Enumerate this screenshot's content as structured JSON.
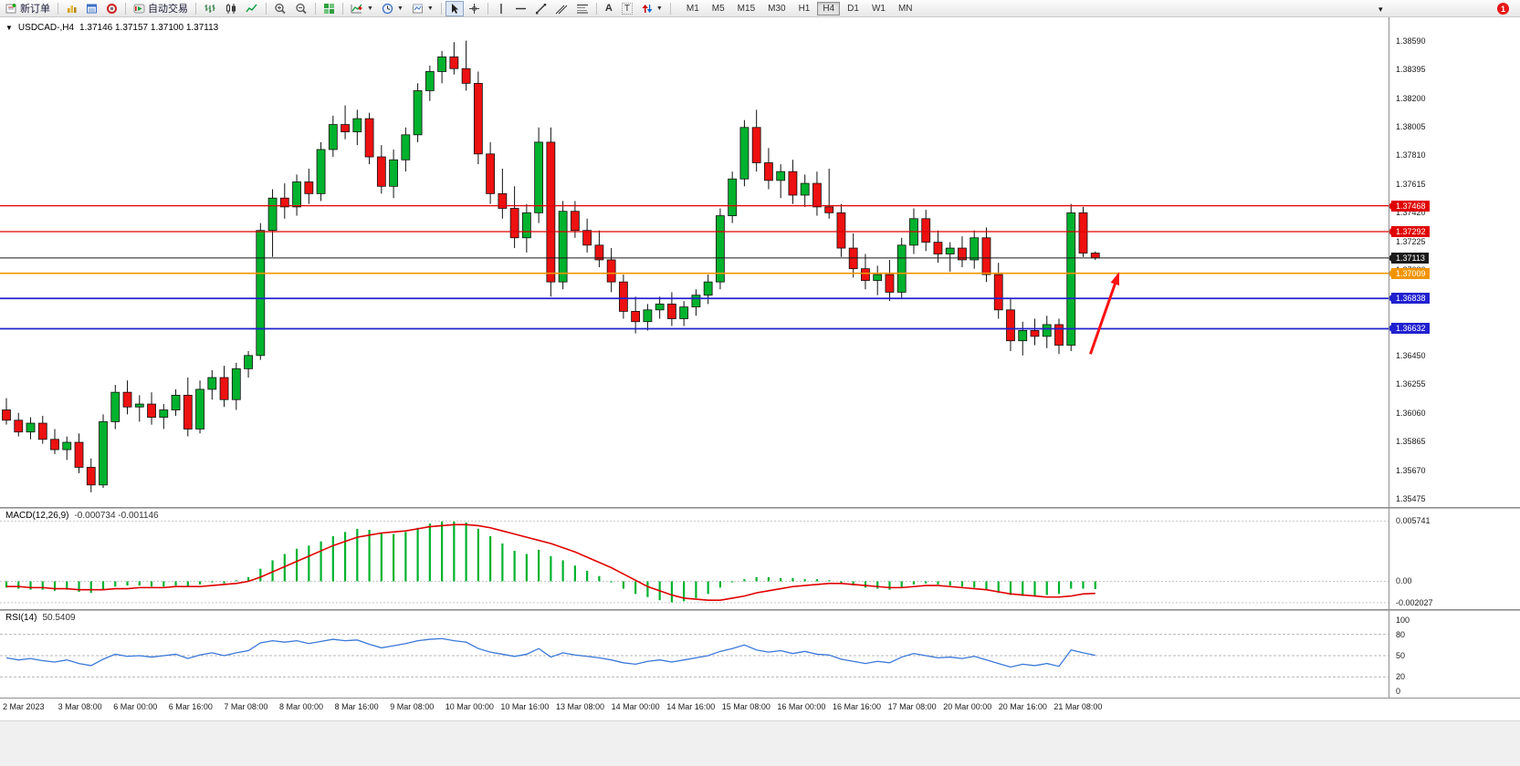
{
  "toolbar": {
    "new_order_label": "新订单",
    "algo_trading_label": "自动交易",
    "timeframes": [
      "M1",
      "M5",
      "M15",
      "M30",
      "H1",
      "H4",
      "D1",
      "W1",
      "MN"
    ],
    "active_timeframe": "H4",
    "notification_count": "1",
    "overflow_glyph": "▾"
  },
  "icons": {
    "new-order": "ticket-plus",
    "depth-of-market": "gold-bars",
    "data-window": "blue-list",
    "toolbox": "red-round",
    "algo-trading": "green-play",
    "bars-chart": "ohlc-bars",
    "candles-chart": "candles",
    "line-chart": "zigzag",
    "zoom-in": "magnifier-plus",
    "zoom-out": "magnifier-minus",
    "tile-windows": "green-grid",
    "indicators": "chart-plus",
    "periods": "clock",
    "templates": "image-page",
    "cursor": "pointer-arrow",
    "crosshair": "cross",
    "vertical-line": "|",
    "horizontal-line": "—",
    "trendline": "/",
    "channel": "parallel-lines",
    "fibonacci": "stacked-lines",
    "text": "A",
    "label": "T",
    "arrows": "up-down-arrows",
    "collapse": "▼"
  },
  "chart": {
    "type": "candlestick",
    "title": "USDCAD-,H4",
    "ohlc": "1.37146 1.37157 1.37100 1.37113",
    "colors": {
      "up": "#00b22d",
      "down": "#ee1111",
      "wick": "#111111",
      "arrow": "#ff1111"
    },
    "price_axis": {
      "min": 1.3542,
      "max": 1.3873,
      "ticks": [
        "1.38590",
        "1.38395",
        "1.38200",
        "1.38005",
        "1.37810",
        "1.37615",
        "1.37420",
        "1.37225",
        "1.37030",
        "1.36835",
        "1.36640",
        "1.36450",
        "1.36255",
        "1.36060",
        "1.35865",
        "1.35670",
        "1.35475"
      ]
    },
    "levels": [
      {
        "label": "1.37468",
        "price": 1.37468,
        "color": "#e00000",
        "width": 1.3
      },
      {
        "label": "1.37292",
        "price": 1.37292,
        "color": "#e00000",
        "width": 1.3
      },
      {
        "label": "1.37113",
        "price": 1.37113,
        "color": "#1a1a1a",
        "width": 1.0,
        "role": "current-price"
      },
      {
        "label": "1.37009",
        "price": 1.37009,
        "color": "#f29400",
        "width": 1.6
      },
      {
        "label": "1.36838",
        "price": 1.36838,
        "color": "#2121cf",
        "width": 1.8
      },
      {
        "label": "1.36632",
        "price": 1.36632,
        "color": "#2121cf",
        "width": 1.8
      }
    ],
    "arrow": {
      "from": {
        "bar": 89.6,
        "price": 1.3646
      },
      "to": {
        "bar": 91.9,
        "price": 1.37
      },
      "color": "#ff1111"
    },
    "candles": [
      [
        1.3608,
        1.3616,
        1.3598,
        1.3601
      ],
      [
        1.3601,
        1.3606,
        1.359,
        1.3593
      ],
      [
        1.3593,
        1.3603,
        1.3588,
        1.3599
      ],
      [
        1.3599,
        1.3604,
        1.3585,
        1.3588
      ],
      [
        1.3588,
        1.3595,
        1.3578,
        1.3581
      ],
      [
        1.3581,
        1.359,
        1.3574,
        1.3586
      ],
      [
        1.3586,
        1.3592,
        1.3565,
        1.3569
      ],
      [
        1.3569,
        1.3575,
        1.3552,
        1.3557
      ],
      [
        1.3557,
        1.3605,
        1.3555,
        1.36
      ],
      [
        1.36,
        1.3625,
        1.3595,
        1.362
      ],
      [
        1.362,
        1.3628,
        1.3605,
        1.361
      ],
      [
        1.361,
        1.3618,
        1.36,
        1.3612
      ],
      [
        1.3612,
        1.362,
        1.3598,
        1.3603
      ],
      [
        1.3603,
        1.3612,
        1.3595,
        1.3608
      ],
      [
        1.3608,
        1.3622,
        1.3604,
        1.3618
      ],
      [
        1.3618,
        1.363,
        1.359,
        1.3595
      ],
      [
        1.3595,
        1.3628,
        1.3592,
        1.3622
      ],
      [
        1.3622,
        1.3635,
        1.3615,
        1.363
      ],
      [
        1.363,
        1.3638,
        1.361,
        1.3615
      ],
      [
        1.3615,
        1.364,
        1.3608,
        1.3636
      ],
      [
        1.3636,
        1.3648,
        1.363,
        1.3645
      ],
      [
        1.3645,
        1.3735,
        1.3642,
        1.373
      ],
      [
        1.373,
        1.3758,
        1.3712,
        1.3752
      ],
      [
        1.3752,
        1.3762,
        1.3738,
        1.3746
      ],
      [
        1.3746,
        1.3768,
        1.374,
        1.3763
      ],
      [
        1.3763,
        1.3772,
        1.3748,
        1.3755
      ],
      [
        1.3755,
        1.379,
        1.375,
        1.3785
      ],
      [
        1.3785,
        1.3808,
        1.378,
        1.3802
      ],
      [
        1.3802,
        1.3815,
        1.3792,
        1.3797
      ],
      [
        1.3797,
        1.3812,
        1.3788,
        1.3806
      ],
      [
        1.3806,
        1.381,
        1.3775,
        1.378
      ],
      [
        1.378,
        1.3788,
        1.3755,
        1.376
      ],
      [
        1.376,
        1.3785,
        1.3752,
        1.3778
      ],
      [
        1.3778,
        1.38,
        1.377,
        1.3795
      ],
      [
        1.3795,
        1.383,
        1.379,
        1.3825
      ],
      [
        1.3825,
        1.3842,
        1.3818,
        1.3838
      ],
      [
        1.3838,
        1.3852,
        1.383,
        1.3848
      ],
      [
        1.3848,
        1.3858,
        1.3836,
        1.384
      ],
      [
        1.384,
        1.3859,
        1.3825,
        1.383
      ],
      [
        1.383,
        1.3838,
        1.3775,
        1.3782
      ],
      [
        1.3782,
        1.379,
        1.3748,
        1.3755
      ],
      [
        1.3755,
        1.3772,
        1.3738,
        1.3745
      ],
      [
        1.3745,
        1.376,
        1.3718,
        1.3725
      ],
      [
        1.3725,
        1.3748,
        1.3715,
        1.3742
      ],
      [
        1.3742,
        1.38,
        1.3735,
        1.379
      ],
      [
        1.379,
        1.38,
        1.3685,
        1.3695
      ],
      [
        1.3695,
        1.375,
        1.369,
        1.3743
      ],
      [
        1.3743,
        1.375,
        1.3725,
        1.373
      ],
      [
        1.373,
        1.3738,
        1.3715,
        1.372
      ],
      [
        1.372,
        1.373,
        1.3705,
        1.371
      ],
      [
        1.371,
        1.3718,
        1.3688,
        1.3695
      ],
      [
        1.3695,
        1.37,
        1.367,
        1.3675
      ],
      [
        1.3675,
        1.3685,
        1.366,
        1.3668
      ],
      [
        1.3668,
        1.368,
        1.3662,
        1.3676
      ],
      [
        1.3676,
        1.3685,
        1.367,
        1.368
      ],
      [
        1.368,
        1.3688,
        1.3665,
        1.367
      ],
      [
        1.367,
        1.3682,
        1.3665,
        1.3678
      ],
      [
        1.3678,
        1.369,
        1.3672,
        1.3686
      ],
      [
        1.3686,
        1.37,
        1.368,
        1.3695
      ],
      [
        1.3695,
        1.3745,
        1.369,
        1.374
      ],
      [
        1.374,
        1.377,
        1.3735,
        1.3765
      ],
      [
        1.3765,
        1.3805,
        1.376,
        1.38
      ],
      [
        1.38,
        1.3812,
        1.377,
        1.3776
      ],
      [
        1.3776,
        1.3786,
        1.3758,
        1.3764
      ],
      [
        1.3764,
        1.3775,
        1.3752,
        1.377
      ],
      [
        1.377,
        1.3778,
        1.3748,
        1.3754
      ],
      [
        1.3754,
        1.3768,
        1.3746,
        1.3762
      ],
      [
        1.3762,
        1.377,
        1.374,
        1.3746
      ],
      [
        1.3746,
        1.3772,
        1.3738,
        1.3742
      ],
      [
        1.3742,
        1.3748,
        1.3712,
        1.3718
      ],
      [
        1.3718,
        1.3728,
        1.3698,
        1.3704
      ],
      [
        1.3704,
        1.3714,
        1.369,
        1.3696
      ],
      [
        1.3696,
        1.3706,
        1.3686,
        1.37
      ],
      [
        1.37,
        1.371,
        1.3682,
        1.3688
      ],
      [
        1.3688,
        1.3725,
        1.3684,
        1.372
      ],
      [
        1.372,
        1.3745,
        1.3714,
        1.3738
      ],
      [
        1.3738,
        1.3744,
        1.3716,
        1.3722
      ],
      [
        1.3722,
        1.373,
        1.3708,
        1.3714
      ],
      [
        1.3714,
        1.3722,
        1.3702,
        1.3718
      ],
      [
        1.3718,
        1.3726,
        1.3705,
        1.371
      ],
      [
        1.371,
        1.373,
        1.3704,
        1.3725
      ],
      [
        1.3725,
        1.3732,
        1.3695,
        1.37
      ],
      [
        1.37,
        1.3708,
        1.367,
        1.3676
      ],
      [
        1.3676,
        1.3684,
        1.3648,
        1.3655
      ],
      [
        1.3655,
        1.3668,
        1.3645,
        1.3662
      ],
      [
        1.3662,
        1.367,
        1.3652,
        1.3658
      ],
      [
        1.3658,
        1.3672,
        1.365,
        1.3666
      ],
      [
        1.3666,
        1.367,
        1.3646,
        1.3652
      ],
      [
        1.3652,
        1.3748,
        1.3648,
        1.3742
      ],
      [
        1.3742,
        1.3746,
        1.3712,
        1.37146
      ],
      [
        1.37146,
        1.37157,
        1.371,
        1.37113
      ]
    ]
  },
  "macd": {
    "title": "MACD(12,26,9)",
    "values": "-0.000734 -0.001146",
    "axis_labels": [
      "0.005741",
      "0.00",
      "-0.002027"
    ],
    "range": {
      "min": -0.00265,
      "max": 0.0069
    },
    "colors": {
      "hist": "#00b22d",
      "signal": "#e00000"
    },
    "hist": [
      -0.0006,
      -0.0007,
      -0.0008,
      -0.0008,
      -0.0009,
      -0.0008,
      -0.001,
      -0.0011,
      -0.0008,
      -0.0005,
      -0.0004,
      -0.0004,
      -0.0005,
      -0.0005,
      -0.0004,
      -0.0005,
      -0.0003,
      -0.0001,
      -0.0002,
      0.0001,
      0.0004,
      0.0012,
      0.002,
      0.0026,
      0.0031,
      0.0034,
      0.0038,
      0.0043,
      0.0047,
      0.005,
      0.0049,
      0.0046,
      0.0045,
      0.0047,
      0.0051,
      0.0055,
      0.0057,
      0.0057,
      0.0056,
      0.005,
      0.0043,
      0.0036,
      0.0029,
      0.0026,
      0.003,
      0.0024,
      0.002,
      0.0015,
      0.001,
      0.0005,
      -0.0001,
      -0.0007,
      -0.0012,
      -0.0015,
      -0.0018,
      -0.002,
      -0.0019,
      -0.0016,
      -0.0012,
      -0.0006,
      -0.0001,
      0.0002,
      0.0004,
      0.0004,
      0.0003,
      0.0003,
      0.0002,
      0.0002,
      0.0001,
      -0.0002,
      -0.0004,
      -0.0006,
      -0.0007,
      -0.0008,
      -0.0006,
      -0.0003,
      -0.0002,
      -0.0003,
      -0.0004,
      -0.0005,
      -0.0006,
      -0.0008,
      -0.0011,
      -0.0013,
      -0.0014,
      -0.0014,
      -0.0013,
      -0.0012,
      -0.0007,
      -0.0007,
      -0.000734
    ],
    "signal": [
      -0.0005,
      -0.0005,
      -0.0006,
      -0.0006,
      -0.0007,
      -0.0007,
      -0.0008,
      -0.0008,
      -0.0008,
      -0.0007,
      -0.0007,
      -0.0006,
      -0.0006,
      -0.0006,
      -0.0005,
      -0.0005,
      -0.0005,
      -0.0004,
      -0.0003,
      -0.0002,
      0.0,
      0.0004,
      0.0009,
      0.0014,
      0.0019,
      0.0024,
      0.0029,
      0.0034,
      0.0038,
      0.0042,
      0.0044,
      0.0046,
      0.0047,
      0.0048,
      0.005,
      0.0052,
      0.0053,
      0.0054,
      0.0054,
      0.0053,
      0.0051,
      0.0048,
      0.0045,
      0.0042,
      0.0039,
      0.0036,
      0.0032,
      0.0028,
      0.0023,
      0.0018,
      0.0013,
      0.0007,
      0.0001,
      -0.0005,
      -0.0009,
      -0.0013,
      -0.0016,
      -0.0017,
      -0.0018,
      -0.0018,
      -0.0016,
      -0.0014,
      -0.0011,
      -0.0009,
      -0.0007,
      -0.0005,
      -0.0004,
      -0.0003,
      -0.0002,
      -0.0002,
      -0.0003,
      -0.0004,
      -0.0005,
      -0.0006,
      -0.0006,
      -0.0005,
      -0.0004,
      -0.0004,
      -0.0005,
      -0.0006,
      -0.0007,
      -0.0008,
      -0.001,
      -0.0012,
      -0.0013,
      -0.0014,
      -0.0015,
      -0.0015,
      -0.0014,
      -0.0012,
      -0.001146
    ]
  },
  "rsi": {
    "title": "RSI(14)",
    "value": "50.5409",
    "axis_labels": [
      "100",
      "80",
      "50",
      "20",
      "0"
    ],
    "level_lines": [
      80,
      50,
      20
    ],
    "color": "#3b78d8",
    "series": [
      47,
      44,
      46,
      43,
      41,
      44,
      39,
      36,
      45,
      52,
      49,
      50,
      48,
      50,
      52,
      46,
      51,
      54,
      50,
      54,
      57,
      68,
      71,
      69,
      71,
      67,
      70,
      73,
      71,
      72,
      66,
      61,
      64,
      67,
      71,
      73,
      74,
      71,
      69,
      60,
      55,
      52,
      49,
      52,
      60,
      48,
      54,
      51,
      49,
      47,
      44,
      40,
      38,
      42,
      44,
      41,
      44,
      47,
      50,
      56,
      60,
      65,
      58,
      55,
      57,
      53,
      56,
      52,
      51,
      45,
      42,
      39,
      42,
      40,
      48,
      53,
      50,
      47,
      48,
      46,
      49,
      44,
      39,
      34,
      38,
      36,
      39,
      35,
      58,
      54,
      50.54
    ]
  },
  "time_axis": {
    "labels": [
      "2 Mar 2023",
      "3 Mar 08:00",
      "6 Mar 00:00",
      "6 Mar 16:00",
      "7 Mar 08:00",
      "8 Mar 00:00",
      "8 Mar 16:00",
      "9 Mar 08:00",
      "10 Mar 00:00",
      "10 Mar 16:00",
      "13 Mar 08:00",
      "14 Mar 00:00",
      "14 Mar 16:00",
      "15 Mar 08:00",
      "16 Mar 00:00",
      "16 Mar 16:00",
      "17 Mar 08:00",
      "20 Mar 00:00",
      "20 Mar 16:00",
      "21 Mar 08:00"
    ]
  }
}
